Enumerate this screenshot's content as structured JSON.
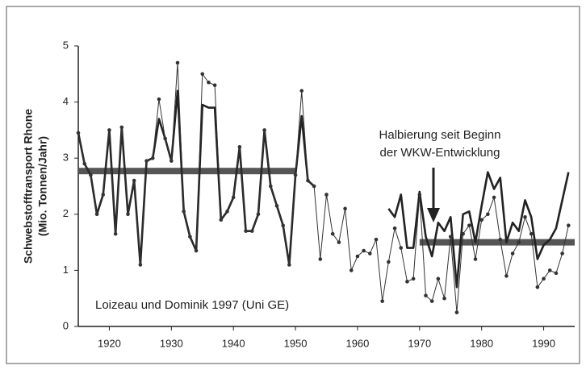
{
  "chart_data": {
    "type": "line",
    "ylabel": [
      "Schwebstofftransport Rhone",
      "(Mio. Tonnen/Jahr)"
    ],
    "annotations": [
      "Halbierung seit Beginn",
      "der WKW-Entwicklung",
      "Loizeau und Dominik 1997 (Uni GE)"
    ],
    "x": [
      1915,
      1916,
      1917,
      1918,
      1919,
      1920,
      1921,
      1922,
      1923,
      1924,
      1925,
      1926,
      1927,
      1928,
      1929,
      1930,
      1931,
      1932,
      1933,
      1934,
      1935,
      1936,
      1937,
      1938,
      1939,
      1940,
      1941,
      1942,
      1943,
      1944,
      1945,
      1946,
      1947,
      1948,
      1949,
      1950,
      1951,
      1952,
      1953,
      1954,
      1955,
      1956,
      1957,
      1958,
      1959,
      1960,
      1961,
      1962,
      1963,
      1964,
      1965,
      1966,
      1967,
      1968,
      1969,
      1970,
      1971,
      1972,
      1973,
      1974,
      1975,
      1976,
      1977,
      1978,
      1979,
      1980,
      1981,
      1982,
      1983,
      1984,
      1985,
      1986,
      1987,
      1988,
      1989,
      1990,
      1991,
      1992,
      1993,
      1994
    ],
    "series": [
      {
        "color": "#222222",
        "markers": false,
        "width": 2.6,
        "values": [
          3.45,
          2.9,
          2.7,
          2.0,
          2.35,
          3.5,
          1.65,
          3.55,
          2.0,
          2.6,
          1.1,
          2.95,
          3.0,
          3.7,
          3.35,
          2.95,
          4.2,
          2.05,
          1.6,
          1.35,
          3.95,
          3.9,
          3.9,
          1.9,
          2.05,
          2.3,
          3.2,
          1.7,
          1.7,
          2.0,
          3.5,
          2.5,
          2.15,
          1.8,
          1.1,
          2.7,
          3.75,
          2.6,
          2.5,
          null,
          null,
          null,
          null,
          null,
          null,
          null,
          null,
          null,
          null,
          null,
          2.1,
          1.95,
          2.35,
          1.4,
          1.4,
          2.4,
          1.6,
          1.25,
          1.85,
          1.7,
          1.95,
          0.7,
          2.0,
          2.05,
          1.5,
          2.15,
          2.75,
          2.45,
          2.65,
          1.5,
          1.85,
          1.7,
          2.25,
          1.95,
          1.2,
          1.45,
          1.55,
          1.75,
          2.25,
          2.75
        ]
      },
      {
        "color": "#333333",
        "markers": true,
        "width": 1,
        "values": [
          3.45,
          2.9,
          2.7,
          2.0,
          2.35,
          3.5,
          1.65,
          3.55,
          2.0,
          2.6,
          1.1,
          2.95,
          3.0,
          4.05,
          3.35,
          2.95,
          4.7,
          2.05,
          1.6,
          1.35,
          4.5,
          4.35,
          4.3,
          1.9,
          2.05,
          2.3,
          3.2,
          1.7,
          1.7,
          2.0,
          3.5,
          2.5,
          2.15,
          1.8,
          1.1,
          2.7,
          4.2,
          2.6,
          2.5,
          1.2,
          2.35,
          1.65,
          1.5,
          2.1,
          1.0,
          1.25,
          1.35,
          1.3,
          1.55,
          0.45,
          1.15,
          1.75,
          1.4,
          0.8,
          0.85,
          2.35,
          0.55,
          0.45,
          0.85,
          0.5,
          1.6,
          0.25,
          1.65,
          1.8,
          1.2,
          1.9,
          2.0,
          2.3,
          1.55,
          0.9,
          1.3,
          1.5,
          1.95,
          1.65,
          0.7,
          0.85,
          1.0,
          0.95,
          1.3,
          1.8
        ]
      }
    ],
    "means": [
      {
        "from": 1915,
        "to": 1950,
        "value": 2.77
      },
      {
        "from": 1970,
        "to": 1995,
        "value": 1.5
      }
    ],
    "mean_color": "#555555",
    "xlim": [
      1915,
      1995
    ],
    "xticks": [
      1920,
      1930,
      1940,
      1950,
      1960,
      1970,
      1980,
      1990
    ],
    "ylim": [
      0,
      5
    ],
    "yticks": [
      0,
      1,
      2,
      3,
      4,
      5
    ]
  }
}
